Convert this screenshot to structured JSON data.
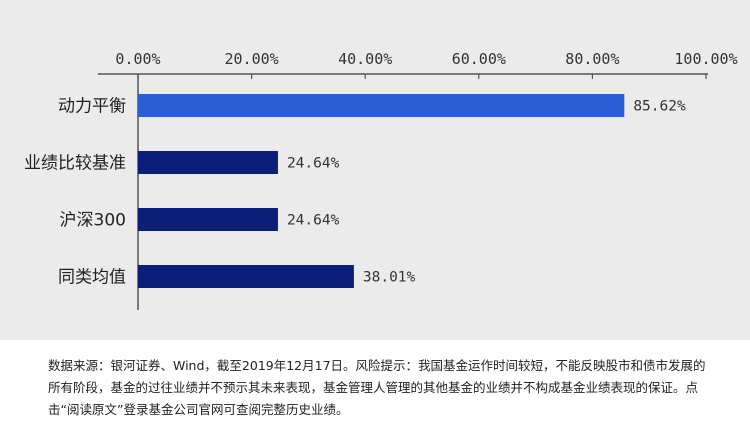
{
  "chart_data": {
    "type": "bar",
    "orientation": "horizontal",
    "categories": [
      "动力平衡",
      "业绩比较基准",
      "沪深300",
      "同类均值"
    ],
    "values": [
      85.62,
      24.64,
      24.64,
      38.01
    ],
    "value_labels": [
      "85.62%",
      "24.64%",
      "24.64%",
      "38.01%"
    ],
    "bar_colors": [
      "#2d5fd4",
      "#0c1f78",
      "#0c1f78",
      "#0c1f78"
    ],
    "xlim": [
      0,
      100
    ],
    "x_ticks": [
      0,
      20,
      40,
      60,
      80,
      100
    ],
    "x_tick_labels": [
      "0.00%",
      "20.00%",
      "40.00%",
      "60.00%",
      "80.00%",
      "100.00%"
    ],
    "x_axis_position": "top",
    "grid": false
  },
  "footnote": "数据来源：银河证券、Wind，截至2019年12月17日。风险提示：我国基金运作时间较短，不能反映股市和债市发展的所有阶段，基金的过往业绩并不预示其未来表现，基金管理人管理的其他基金的业绩并不构成基金业绩表现的保证。点击“阅读原文”登录基金公司官网可查阅完整历史业绩。"
}
